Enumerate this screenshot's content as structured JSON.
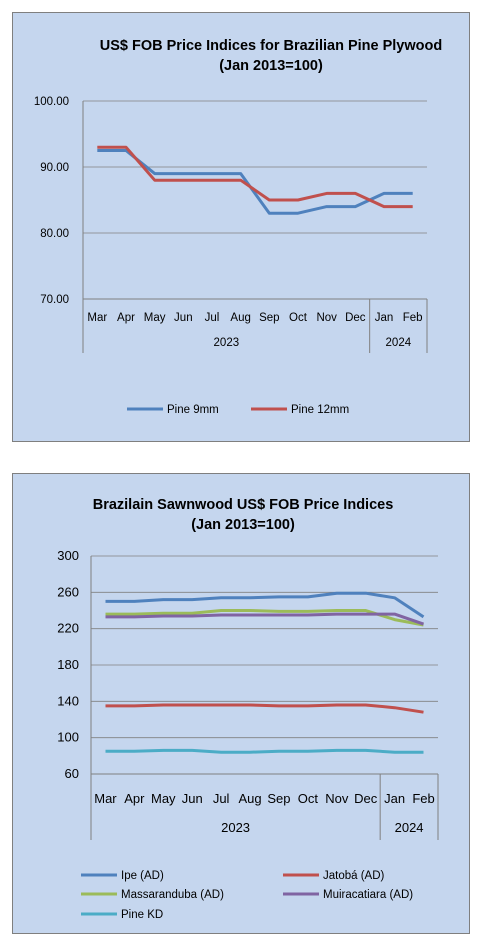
{
  "chart_data": [
    {
      "type": "line",
      "title": "US$ FOB Price Indices for Brazilian  Pine Plywood",
      "subtitle": "(Jan 2013=100)",
      "categories": [
        "Mar",
        "Apr",
        "May",
        "Jun",
        "Jul",
        "Aug",
        "Sep",
        "Oct",
        "Nov",
        "Dec",
        "Jan",
        "Feb"
      ],
      "year_groups": [
        {
          "label": "2023",
          "span": 10
        },
        {
          "label": "2024",
          "span": 2
        }
      ],
      "yticks": [
        "70.00",
        "80.00",
        "90.00",
        "100.00"
      ],
      "ylim": [
        70,
        100
      ],
      "grid": true,
      "legend_position": "bottom",
      "series": [
        {
          "name": "Pine 9mm",
          "color": "#4f81bd",
          "values": [
            92.5,
            92.5,
            89,
            89,
            89,
            89,
            83,
            83,
            84,
            84,
            86,
            86
          ]
        },
        {
          "name": "Pine 12mm",
          "color": "#c0504d",
          "values": [
            93,
            93,
            88,
            88,
            88,
            88,
            85,
            85,
            86,
            86,
            84,
            84
          ]
        }
      ]
    },
    {
      "type": "line",
      "title": "Brazilain Sawnwood US$ FOB Price Indices",
      "subtitle": "(Jan 2013=100)",
      "categories": [
        "Mar",
        "Apr",
        "May",
        "Jun",
        "Jul",
        "Aug",
        "Sep",
        "Oct",
        "Nov",
        "Dec",
        "Jan",
        "Feb"
      ],
      "year_groups": [
        {
          "label": "2023",
          "span": 10
        },
        {
          "label": "2024",
          "span": 2
        }
      ],
      "yticks": [
        "60",
        "100",
        "140",
        "180",
        "220",
        "260",
        "300"
      ],
      "ylim": [
        60,
        300
      ],
      "grid": true,
      "legend_position": "bottom",
      "series": [
        {
          "name": "Ipe (AD)",
          "color": "#4f81bd",
          "values": [
            250,
            250,
            252,
            252,
            254,
            254,
            255,
            255,
            259,
            259,
            254,
            233
          ]
        },
        {
          "name": "Jatobá (AD)",
          "color": "#c0504d",
          "values": [
            135,
            135,
            136,
            136,
            136,
            136,
            135,
            135,
            136,
            136,
            133,
            128
          ]
        },
        {
          "name": "Massaranduba (AD)",
          "color": "#9bbb59",
          "values": [
            236,
            236,
            237,
            237,
            240,
            240,
            239,
            239,
            240,
            240,
            230,
            224
          ]
        },
        {
          "name": "Muiracatiara (AD)",
          "color": "#8064a2",
          "values": [
            233,
            233,
            234,
            234,
            235,
            235,
            235,
            235,
            236,
            236,
            236,
            225
          ]
        },
        {
          "name": "Pine KD",
          "color": "#4bacc6",
          "values": [
            85,
            85,
            86,
            86,
            84,
            84,
            85,
            85,
            86,
            86,
            84,
            84
          ]
        }
      ]
    }
  ]
}
